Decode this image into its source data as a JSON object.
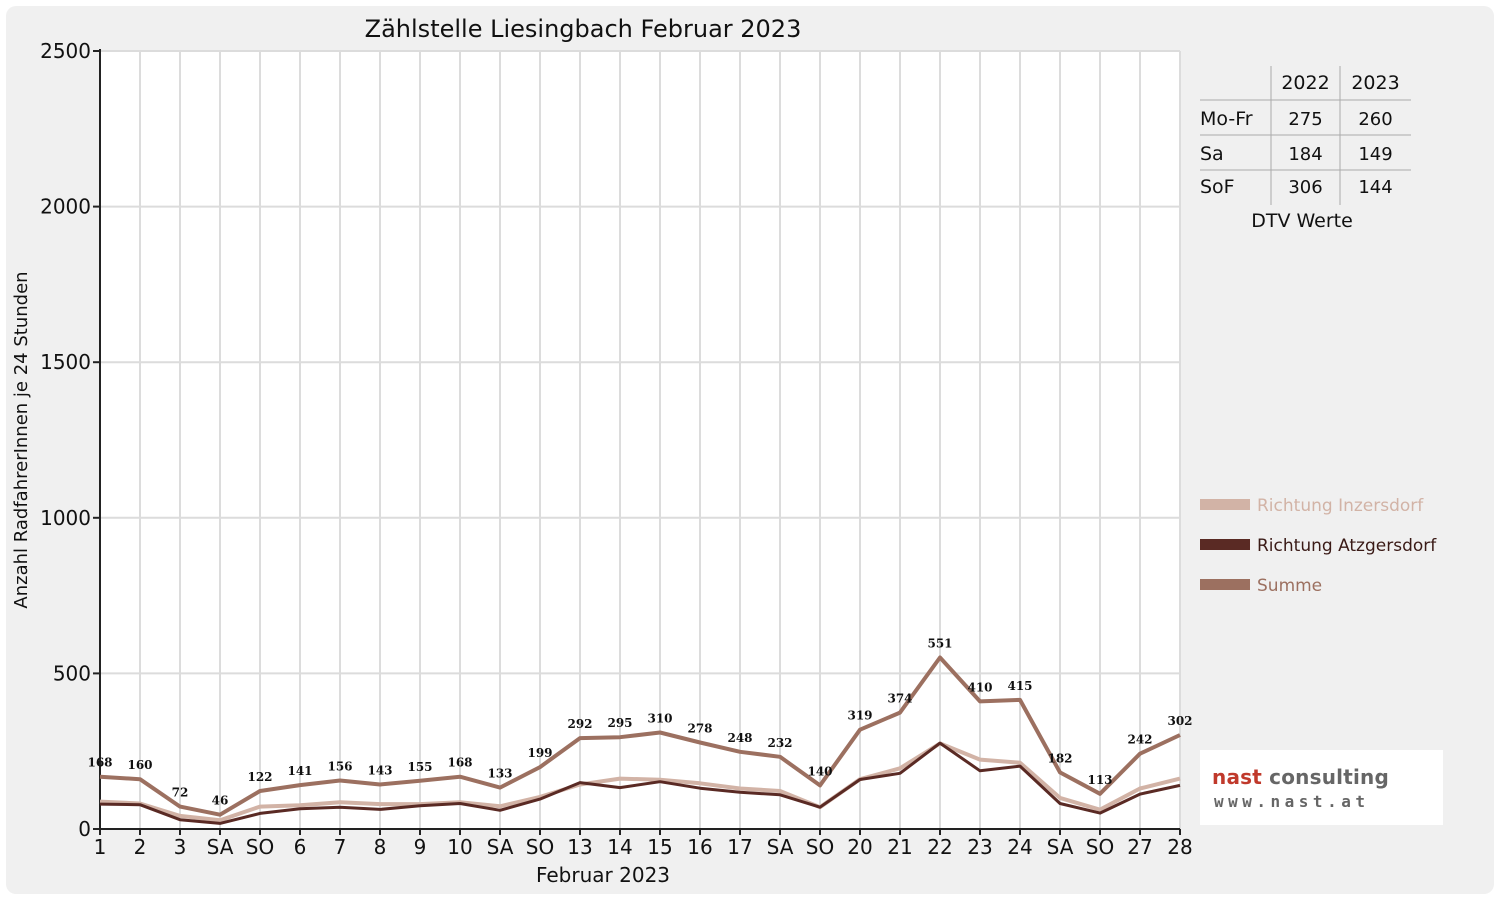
{
  "chart_data": {
    "type": "line",
    "title": "Zählstelle Liesingbach Februar 2023",
    "xlabel": "Februar 2023",
    "ylabel": "Anzahl RadfahrerInnen je 24 Stunden",
    "ylim": [
      0,
      2500
    ],
    "yticks": [
      0,
      500,
      1000,
      1500,
      2000,
      2500
    ],
    "grid": true,
    "legend_position": "right",
    "categories": [
      "1",
      "2",
      "3",
      "SA",
      "SO",
      "6",
      "7",
      "8",
      "9",
      "10",
      "SA",
      "SO",
      "13",
      "14",
      "15",
      "16",
      "17",
      "SA",
      "SO",
      "20",
      "21",
      "22",
      "23",
      "24",
      "SA",
      "SO",
      "27",
      "28"
    ],
    "sunday_indices": [
      4,
      11,
      18,
      25
    ],
    "series": [
      {
        "name": "Richtung Inzersdorf",
        "color": "#d2b3a6",
        "width": 4,
        "values": [
          88,
          82,
          42,
          28,
          72,
          76,
          86,
          80,
          80,
          86,
          73,
          103,
          143,
          162,
          158,
          147,
          130,
          122,
          70,
          160,
          195,
          275,
          223,
          213,
          100,
          62,
          130,
          162
        ]
      },
      {
        "name": "Richtung Atzgersdorf",
        "color": "#5a2a24",
        "width": 3,
        "values": [
          80,
          78,
          30,
          18,
          50,
          65,
          70,
          63,
          75,
          82,
          60,
          96,
          149,
          133,
          152,
          131,
          118,
          110,
          70,
          159,
          179,
          276,
          187,
          202,
          82,
          51,
          112,
          140
        ]
      },
      {
        "name": "Summe",
        "color": "#9c7060",
        "width": 4,
        "values": [
          168,
          160,
          72,
          46,
          122,
          141,
          156,
          143,
          155,
          168,
          133,
          199,
          292,
          295,
          310,
          278,
          248,
          232,
          140,
          319,
          374,
          551,
          410,
          415,
          182,
          113,
          242,
          302
        ],
        "labels": [
          "168",
          "160",
          "72",
          "46",
          "122",
          "141",
          "156",
          "143",
          "155",
          "168",
          "133",
          "199",
          "292",
          "295",
          "310",
          "278",
          "248",
          "232",
          "140",
          "319",
          "374",
          "551",
          "410",
          "415",
          "182",
          "113",
          "242",
          "302"
        ]
      }
    ],
    "dtv_table": {
      "caption": "DTV Werte",
      "columns": [
        "2022",
        "2023"
      ],
      "rows": [
        {
          "label": "Mo-Fr",
          "values": [
            "275",
            "260"
          ]
        },
        {
          "label": "Sa",
          "values": [
            "184",
            "149"
          ]
        },
        {
          "label": "SoF",
          "values": [
            "306",
            "144"
          ]
        }
      ]
    }
  },
  "logo": {
    "brand_accent": "nast",
    "brand_rest": "consulting",
    "url": "www.nast.at"
  }
}
